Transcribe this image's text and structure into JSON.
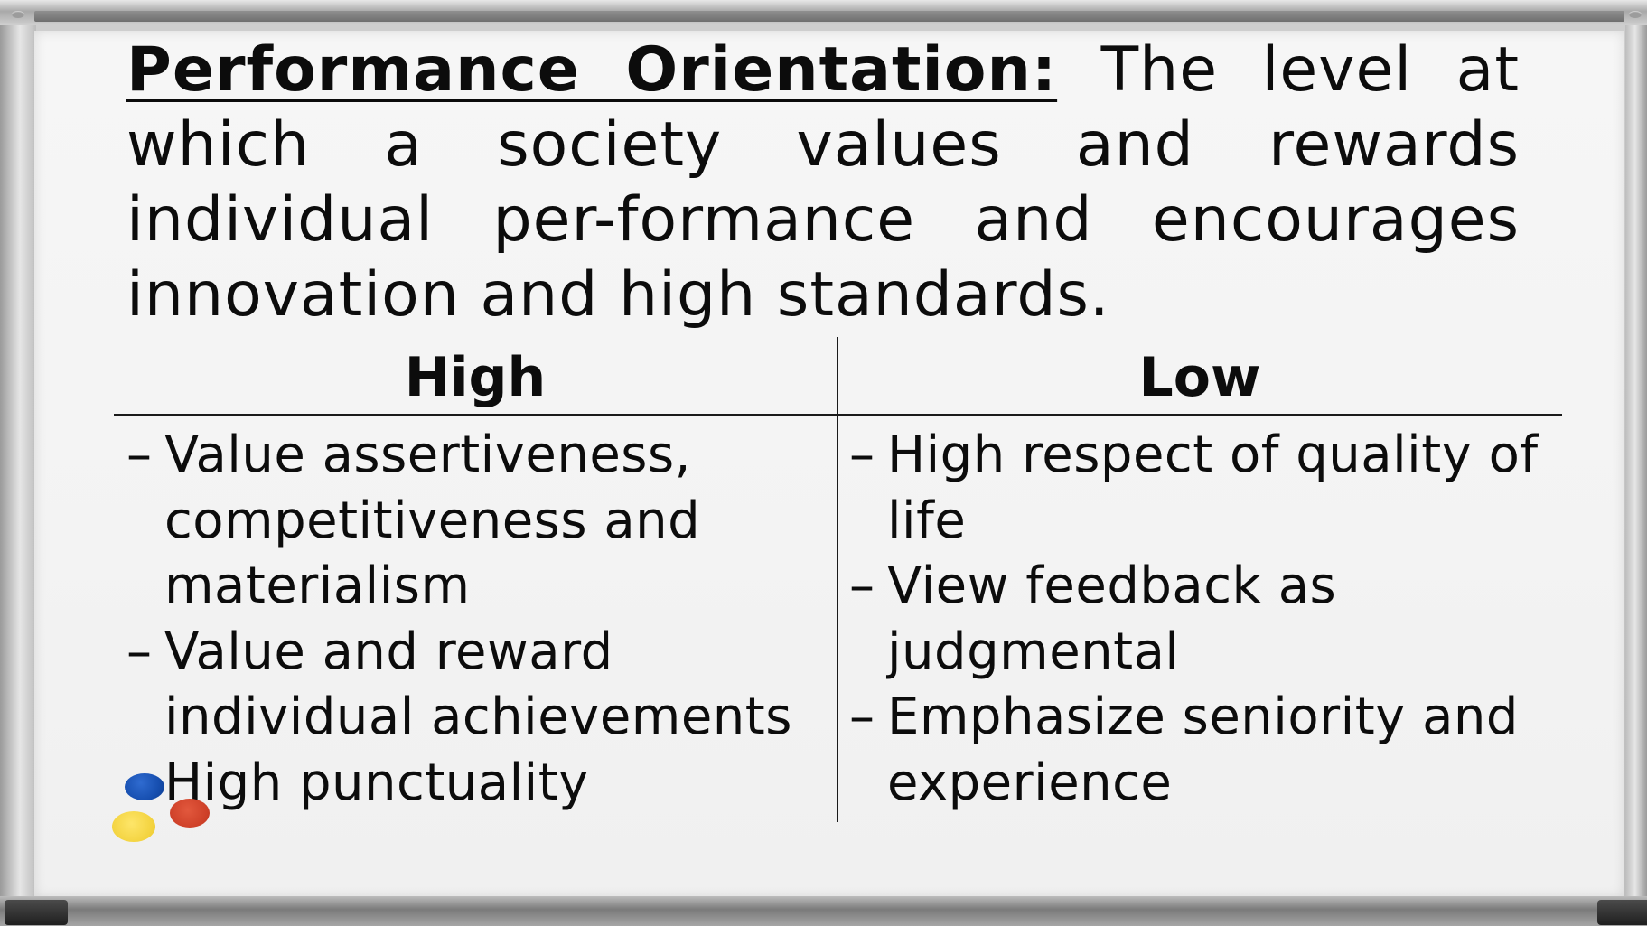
{
  "definition": {
    "term": "Performance Orientation:",
    "text": " The level at which a society values and rewards individual per-formance and encourages innovation and high standards."
  },
  "table": {
    "columns": [
      {
        "heading": "High",
        "items": [
          "Value assertiveness, competitiveness and materialism",
          "Value and reward individual achievements",
          "High punctuality"
        ]
      },
      {
        "heading": "Low",
        "items": [
          "High respect of quality of life",
          "View feedback as judgmental",
          "Emphasize seniority and experience"
        ]
      }
    ],
    "bullet": "–"
  },
  "markers": {
    "colors": [
      "#174fb0",
      "#f3cf2a",
      "#cd3f27"
    ]
  }
}
